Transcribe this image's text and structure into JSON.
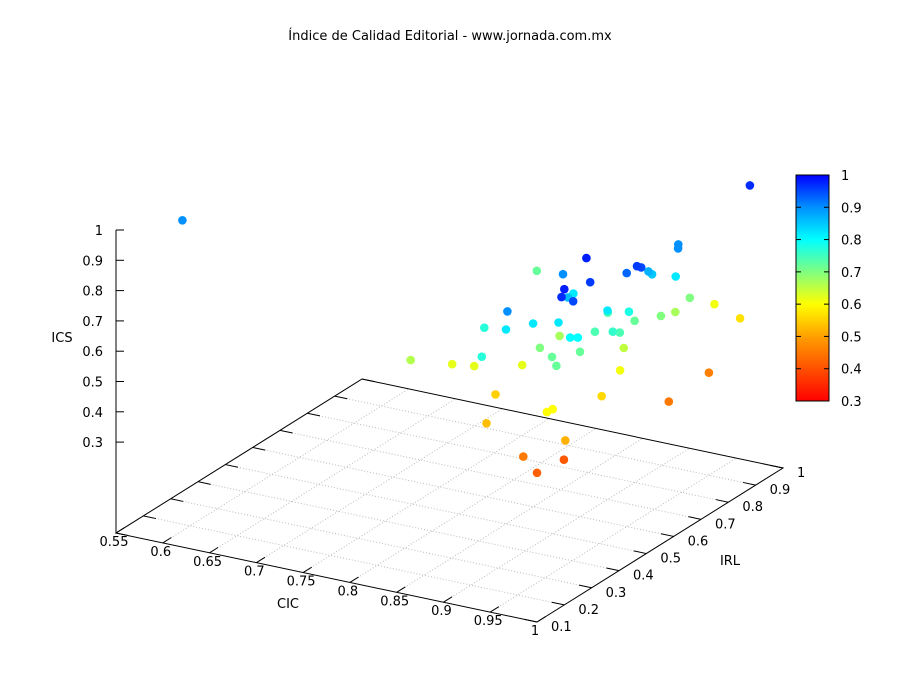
{
  "chart_data": {
    "type": "scatter",
    "title": "Índice de Calidad Editorial - www.jornada.com.mx",
    "xlabel": "CIC",
    "ylabel": "IRL",
    "zlabel": "ICS",
    "xlim": [
      0.55,
      1
    ],
    "ylim": [
      0.1,
      1
    ],
    "zlim": [
      0,
      1
    ],
    "xticks": [
      "0.55",
      "0.6",
      "0.65",
      "0.7",
      "0.75",
      "0.8",
      "0.85",
      "0.9",
      "0.95",
      "1"
    ],
    "yticks": [
      "0.1",
      "0.2",
      "0.3",
      "0.4",
      "0.5",
      "0.6",
      "0.7",
      "0.8",
      "0.9",
      "1"
    ],
    "zticks": [
      "0.3",
      "0.4",
      "0.5",
      "0.6",
      "0.7",
      "0.8",
      "0.9",
      "1"
    ],
    "grid": true,
    "colorbar": {
      "range": [
        0.3,
        1
      ],
      "ticks": [
        "1",
        "0.9",
        "0.8",
        "0.7",
        "0.6",
        "0.5",
        "0.4",
        "0.3"
      ],
      "palette": [
        "#ff0000",
        "#ff5000",
        "#ffa000",
        "#ffff00",
        "#80ff80",
        "#00ffff",
        "#0090ff",
        "#0000ff"
      ],
      "position": "right"
    },
    "points": [
      [
        0.552,
        0.336,
        0.9
      ],
      [
        0.988,
        0.92,
        0.97
      ],
      [
        0.954,
        0.438,
        0.98
      ],
      [
        0.979,
        0.689,
        0.9
      ],
      [
        0.984,
        0.671,
        0.9
      ],
      [
        0.925,
        0.452,
        0.9
      ],
      [
        0.83,
        0.681,
        0.72
      ],
      [
        0.98,
        0.363,
        0.96
      ],
      [
        0.986,
        0.476,
        0.93
      ],
      [
        0.997,
        0.476,
        0.96
      ],
      [
        0.998,
        0.488,
        0.95
      ],
      [
        0.978,
        0.583,
        0.87
      ],
      [
        0.977,
        0.6,
        0.85
      ],
      [
        0.987,
        0.652,
        0.82
      ],
      [
        0.976,
        0.282,
        0.98
      ],
      [
        0.98,
        0.258,
        0.97
      ],
      [
        0.943,
        0.408,
        0.86
      ],
      [
        0.987,
        0.277,
        0.95
      ],
      [
        0.927,
        0.483,
        0.82
      ],
      [
        0.979,
        0.731,
        0.7
      ],
      [
        0.972,
        0.845,
        0.61
      ],
      [
        0.928,
        0.238,
        0.9
      ],
      [
        0.976,
        0.44,
        0.82
      ],
      [
        0.948,
        0.537,
        0.74
      ],
      [
        0.979,
        0.508,
        0.78
      ],
      [
        0.979,
        0.625,
        0.7
      ],
      [
        0.974,
        0.695,
        0.67
      ],
      [
        0.995,
        0.86,
        0.57
      ],
      [
        0.933,
        0.315,
        0.82
      ],
      [
        0.952,
        0.343,
        0.82
      ],
      [
        0.88,
        0.318,
        0.77
      ],
      [
        0.919,
        0.264,
        0.82
      ],
      [
        0.972,
        0.553,
        0.72
      ],
      [
        0.962,
        0.442,
        0.74
      ],
      [
        0.984,
        0.432,
        0.76
      ],
      [
        0.983,
        0.461,
        0.74
      ],
      [
        0.912,
        0.484,
        0.67
      ],
      [
        0.973,
        0.314,
        0.8
      ],
      [
        0.979,
        0.321,
        0.8
      ],
      [
        0.923,
        0.374,
        0.7
      ],
      [
        0.968,
        0.367,
        0.72
      ],
      [
        0.971,
        0.517,
        0.65
      ],
      [
        0.952,
        0.319,
        0.72
      ],
      [
        0.915,
        0.189,
        0.77
      ],
      [
        0.82,
        0.254,
        0.66
      ],
      [
        0.843,
        0.327,
        0.62
      ],
      [
        0.863,
        0.339,
        0.62
      ],
      [
        0.9,
        0.388,
        0.62
      ],
      [
        0.967,
        0.284,
        0.72
      ],
      [
        0.981,
        0.469,
        0.61
      ],
      [
        0.997,
        0.739,
        0.46
      ],
      [
        0.889,
        0.328,
        0.55
      ],
      [
        0.98,
        0.405,
        0.56
      ],
      [
        0.998,
        0.589,
        0.45
      ],
      [
        0.973,
        0.25,
        0.6
      ],
      [
        0.972,
        0.232,
        0.6
      ],
      [
        0.911,
        0.22,
        0.53
      ],
      [
        0.992,
        0.231,
        0.52
      ],
      [
        0.952,
        0.214,
        0.45
      ],
      [
        0.973,
        0.291,
        0.41
      ],
      [
        0.972,
        0.196,
        0.42
      ]
    ]
  }
}
